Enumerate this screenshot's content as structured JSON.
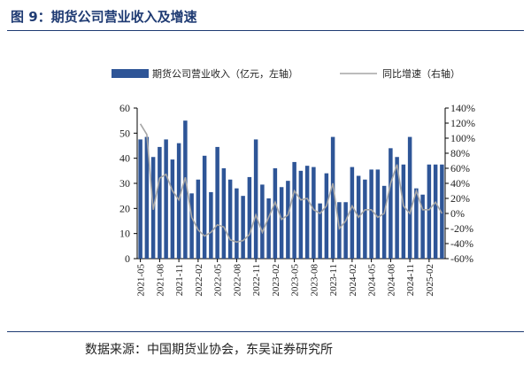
{
  "figure": {
    "title": "图 9：期货公司营业收入及增速",
    "source": "数据来源：中国期货业协会，东吴证券研究所"
  },
  "chart_data": {
    "type": "bar+line",
    "title": "期货公司营业收入及增速",
    "x": [
      "2021-05",
      "2021-06",
      "2021-07",
      "2021-08",
      "2021-09",
      "2021-10",
      "2021-11",
      "2021-12",
      "2022-01",
      "2022-02",
      "2022-03",
      "2022-04",
      "2022-05",
      "2022-06",
      "2022-07",
      "2022-08",
      "2022-09",
      "2022-10",
      "2022-11",
      "2022-12",
      "2023-01",
      "2023-02",
      "2023-03",
      "2023-04",
      "2023-05",
      "2023-06",
      "2023-07",
      "2023-08",
      "2023-09",
      "2023-10",
      "2023-11",
      "2023-12",
      "2024-01",
      "2024-02",
      "2024-03",
      "2024-04",
      "2024-05",
      "2024-06",
      "2024-07",
      "2024-08",
      "2024-09",
      "2024-10",
      "2024-11",
      "2024-12",
      "2025-01",
      "2025-02",
      "2025-03",
      "2025-04"
    ],
    "x_tick_labels": [
      "2021-05",
      "2021-08",
      "2021-11",
      "2022-02",
      "2022-05",
      "2022-08",
      "2022-11",
      "2023-02",
      "2023-05",
      "2023-08",
      "2023-11",
      "2024-02",
      "2024-05",
      "2024-08",
      "2024-11",
      "2025-02"
    ],
    "series": [
      {
        "name": "期货公司营业收入（亿元，左轴）",
        "kind": "bar",
        "axis": "left",
        "color": "#2e5597",
        "values": [
          47.5,
          48.5,
          40.5,
          44.5,
          47.5,
          39.5,
          46,
          55,
          26,
          31.5,
          41,
          26.5,
          44.5,
          36,
          31.5,
          28,
          25,
          32.5,
          47.5,
          29.5,
          24,
          36,
          28.5,
          31,
          38.5,
          35,
          37,
          36.5,
          22,
          34,
          48.5,
          22.5,
          22.5,
          36.5,
          33,
          31.5,
          35.5,
          35.5,
          29,
          44,
          40.5,
          37.5,
          48.5,
          28,
          25.5,
          37.5,
          37.5,
          37.5
        ]
      },
      {
        "name": "同比增速（右轴）",
        "kind": "line",
        "axis": "right",
        "color": "#a6a6a6",
        "values": [
          119,
          105,
          5,
          47,
          52,
          30,
          18,
          48,
          -5,
          -22,
          -30,
          -25,
          -15,
          -18,
          -35,
          -38,
          -36,
          -28,
          -2,
          -25,
          -5,
          15,
          -8,
          -2,
          30,
          18,
          20,
          5,
          0,
          10,
          40,
          -20,
          -10,
          10,
          -5,
          5,
          5,
          -5,
          0,
          40,
          65,
          10,
          0,
          30,
          5,
          5,
          15,
          0
        ]
      }
    ],
    "ylim_left": [
      0,
      60
    ],
    "yticks_left": [
      0,
      10,
      20,
      30,
      40,
      50,
      60
    ],
    "ylim_right": [
      -60,
      140
    ],
    "yticks_right": [
      "-60%",
      "-40%",
      "-20%",
      "0%",
      "20%",
      "40%",
      "60%",
      "80%",
      "100%",
      "120%",
      "140%"
    ],
    "legend": {
      "placement": "top",
      "bar_label": "期货公司营业收入（亿元，左轴）",
      "line_label": "同比增速（右轴）"
    },
    "grid": false
  }
}
